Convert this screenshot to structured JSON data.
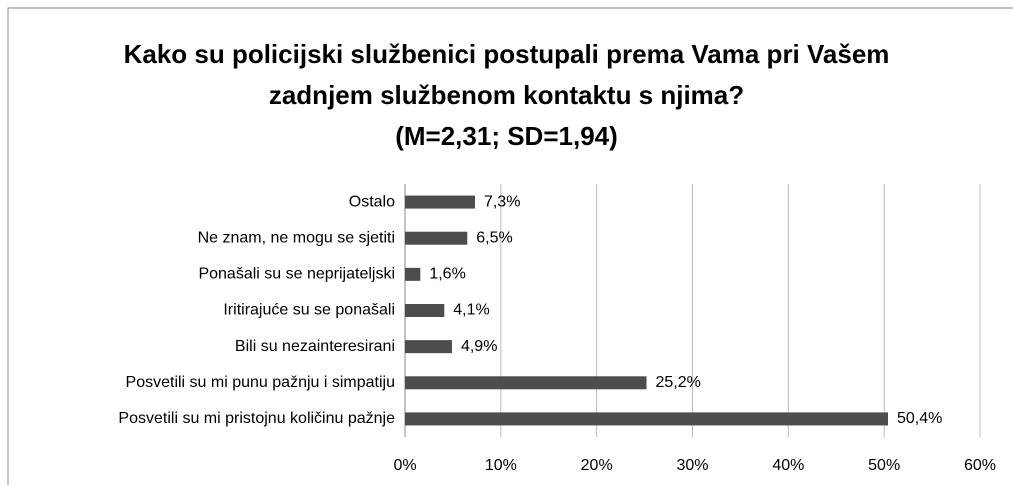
{
  "chart_data": {
    "type": "bar",
    "orientation": "horizontal",
    "title": "Kako su policijski službenici postupali prema Vama pri Vašem zadnjem službenom kontaktu s njima?",
    "subtitle": "(M=2,31; SD=1,94)",
    "categories": [
      "Ostalo",
      "Ne znam, ne mogu se sjetiti",
      "Ponašali su se neprijateljski",
      "Iritirajuće su se ponašali",
      "Bili su nezainteresirani",
      "Posvetili su mi punu pažnju i simpatiju",
      "Posvetili su mi pristojnu količinu pažnje"
    ],
    "values": [
      7.3,
      6.5,
      1.6,
      4.1,
      4.9,
      25.2,
      50.4
    ],
    "value_labels": [
      "7,3%",
      "6,5%",
      "1,6%",
      "4,1%",
      "4,9%",
      "25,2%",
      "50,4%"
    ],
    "color": "#4d4d4d",
    "xlim": [
      0,
      60
    ],
    "xticks": [
      {
        "value": 0,
        "label": "0%"
      },
      {
        "value": 10,
        "label": "10%"
      },
      {
        "value": 20,
        "label": "20%"
      },
      {
        "value": 30,
        "label": "30%"
      },
      {
        "value": 40,
        "label": "40%"
      },
      {
        "value": 50,
        "label": "50%"
      },
      {
        "value": 60,
        "label": "60%"
      }
    ],
    "grid": true
  }
}
